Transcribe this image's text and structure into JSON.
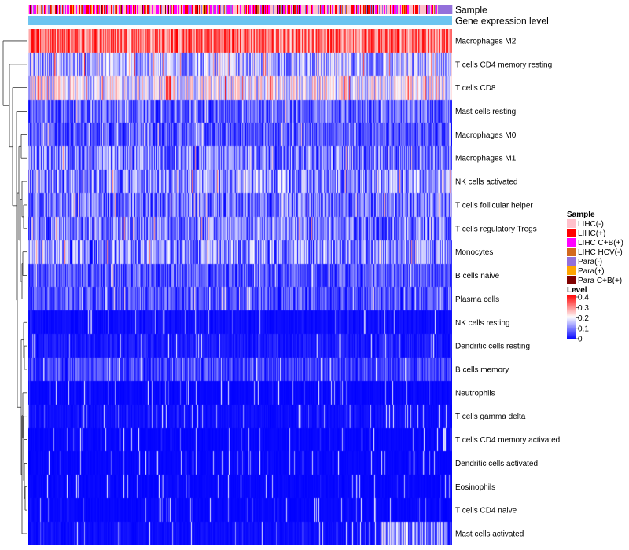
{
  "chart_data": {
    "type": "heatmap",
    "title": "",
    "annotation_tracks": [
      "Sample",
      "Gene expression level"
    ],
    "rows": [
      "Macrophages M2",
      "T cells CD4 memory resting",
      "T cells CD8",
      "Mast cells resting",
      "Macrophages M0",
      "Macrophages M1",
      "NK cells activated",
      "T cells follicular helper",
      "T cells regulatory  Tregs",
      "Monocytes",
      "B cells naive",
      "Plasma cells",
      "NK cells resting",
      "Dendritic cells resting",
      "B cells memory",
      "Neutrophils",
      "T cells gamma delta",
      "T cells CD4 memory activated",
      "Dendritic cells activated",
      "Eosinophils",
      "T cells CD4 naive",
      "Mast cells activated"
    ],
    "row_mean_level": [
      0.32,
      0.13,
      0.18,
      0.07,
      0.06,
      0.09,
      0.1,
      0.08,
      0.09,
      0.1,
      0.06,
      0.06,
      0.02,
      0.04,
      0.05,
      0.01,
      0.02,
      0.01,
      0.01,
      0.01,
      0.01,
      0.02
    ],
    "n_samples": 540,
    "sample_legend": {
      "title": "Sample",
      "entries": [
        {
          "label": "LIHC(-)",
          "color": "#ffc0cb"
        },
        {
          "label": "LIHC(+)",
          "color": "#ff0000"
        },
        {
          "label": "LIHC C+B(+)",
          "color": "#ff00ff"
        },
        {
          "label": "LIHC HCV(-)",
          "color": "#d2691e"
        },
        {
          "label": "Para(-)",
          "color": "#9370db"
        },
        {
          "label": "Para(+)",
          "color": "#ffa500"
        },
        {
          "label": "Para C+B(+)",
          "color": "#800000"
        }
      ]
    },
    "level_legend": {
      "title": "Level",
      "ticks": [
        "0.4",
        "0.3",
        "0.2",
        "0.1",
        "0"
      ],
      "tick_values": [
        0.4,
        0.3,
        0.2,
        0.1,
        0
      ],
      "range": [
        0,
        0.4
      ],
      "colors": [
        "#0000ff",
        "#ffffff",
        "#ff0000"
      ]
    },
    "gene_expression_track_color": "#6ec4f0"
  }
}
